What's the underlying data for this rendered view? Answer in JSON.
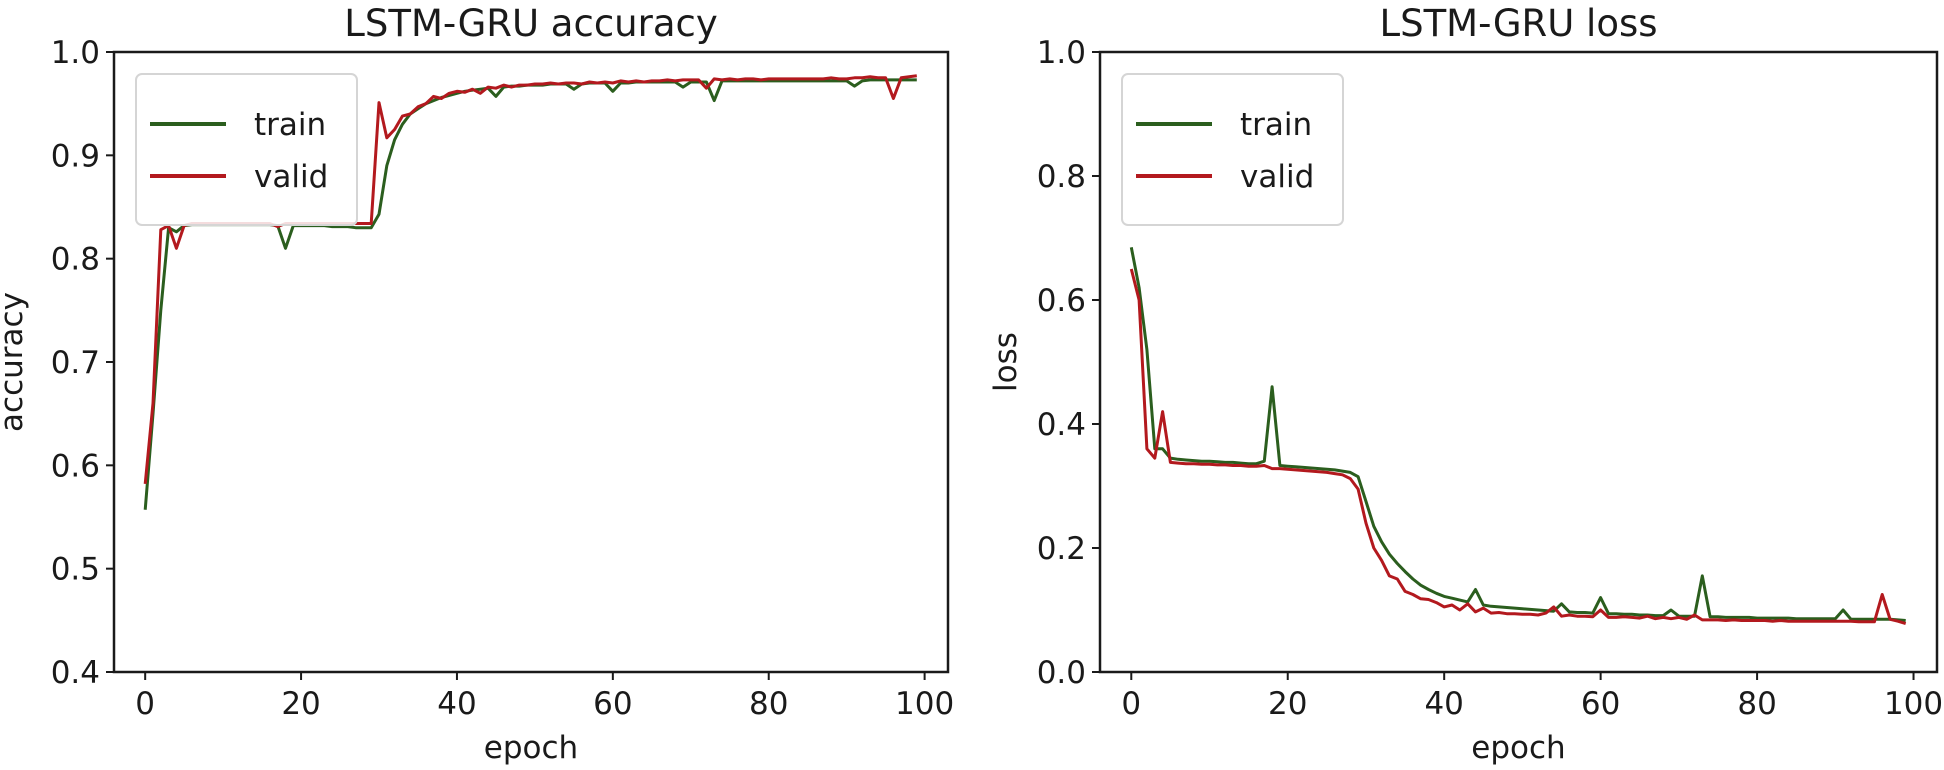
{
  "colors": {
    "train": "#2b5e1e",
    "valid": "#b3191e",
    "axis": "#1a1a1a"
  },
  "chart_data": [
    {
      "type": "line",
      "title": "LSTM-GRU accuracy",
      "xlabel": "epoch",
      "ylabel": "accuracy",
      "xlim": [
        -4,
        103
      ],
      "ylim": [
        0.4,
        1.0
      ],
      "xticks": [
        0,
        20,
        40,
        60,
        80,
        100
      ],
      "yticks": [
        0.4,
        0.5,
        0.6,
        0.7,
        0.8,
        0.9,
        1.0
      ],
      "ytick_labels": [
        "0.4",
        "0.5",
        "0.6",
        "0.7",
        "0.8",
        "0.9",
        "1.0"
      ],
      "grid": false,
      "legend": "upper-left",
      "series": [
        {
          "name": "train",
          "values": [
            0.557,
            0.65,
            0.75,
            0.83,
            0.826,
            0.832,
            0.833,
            0.833,
            0.833,
            0.833,
            0.833,
            0.833,
            0.833,
            0.833,
            0.833,
            0.833,
            0.833,
            0.832,
            0.81,
            0.832,
            0.832,
            0.832,
            0.832,
            0.832,
            0.831,
            0.831,
            0.831,
            0.83,
            0.83,
            0.83,
            0.843,
            0.89,
            0.915,
            0.93,
            0.94,
            0.945,
            0.95,
            0.953,
            0.956,
            0.958,
            0.96,
            0.962,
            0.963,
            0.964,
            0.965,
            0.957,
            0.966,
            0.967,
            0.967,
            0.968,
            0.968,
            0.968,
            0.969,
            0.969,
            0.969,
            0.964,
            0.969,
            0.97,
            0.97,
            0.97,
            0.962,
            0.97,
            0.97,
            0.971,
            0.971,
            0.971,
            0.971,
            0.971,
            0.971,
            0.966,
            0.971,
            0.971,
            0.971,
            0.953,
            0.972,
            0.972,
            0.972,
            0.972,
            0.972,
            0.972,
            0.972,
            0.972,
            0.972,
            0.972,
            0.972,
            0.972,
            0.972,
            0.972,
            0.972,
            0.972,
            0.972,
            0.967,
            0.972,
            0.973,
            0.973,
            0.973,
            0.973,
            0.973,
            0.973,
            0.973
          ]
        },
        {
          "name": "valid",
          "values": [
            0.582,
            0.66,
            0.828,
            0.832,
            0.81,
            0.832,
            0.834,
            0.834,
            0.834,
            0.834,
            0.834,
            0.834,
            0.834,
            0.834,
            0.834,
            0.834,
            0.834,
            0.831,
            0.834,
            0.834,
            0.834,
            0.834,
            0.834,
            0.834,
            0.834,
            0.834,
            0.834,
            0.834,
            0.834,
            0.834,
            0.951,
            0.917,
            0.925,
            0.938,
            0.94,
            0.947,
            0.95,
            0.957,
            0.955,
            0.96,
            0.962,
            0.961,
            0.964,
            0.96,
            0.966,
            0.965,
            0.968,
            0.966,
            0.968,
            0.968,
            0.969,
            0.969,
            0.97,
            0.969,
            0.97,
            0.97,
            0.969,
            0.971,
            0.97,
            0.971,
            0.97,
            0.972,
            0.971,
            0.972,
            0.971,
            0.972,
            0.972,
            0.973,
            0.972,
            0.973,
            0.973,
            0.973,
            0.965,
            0.974,
            0.973,
            0.974,
            0.973,
            0.974,
            0.974,
            0.973,
            0.974,
            0.974,
            0.974,
            0.974,
            0.974,
            0.974,
            0.974,
            0.974,
            0.975,
            0.974,
            0.974,
            0.975,
            0.975,
            0.976,
            0.975,
            0.975,
            0.955,
            0.975,
            0.976,
            0.977
          ]
        }
      ]
    },
    {
      "type": "line",
      "title": "LSTM-GRU loss",
      "xlabel": "epoch",
      "ylabel": "loss",
      "xlim": [
        -4,
        103
      ],
      "ylim": [
        0.0,
        1.0
      ],
      "xticks": [
        0,
        20,
        40,
        60,
        80,
        100
      ],
      "yticks": [
        0.0,
        0.2,
        0.4,
        0.6,
        0.8,
        1.0
      ],
      "ytick_labels": [
        "0.0",
        "0.2",
        "0.4",
        "0.6",
        "0.8",
        "1.0"
      ],
      "grid": false,
      "legend": "upper-left",
      "series": [
        {
          "name": "train",
          "values": [
            0.685,
            0.62,
            0.52,
            0.36,
            0.36,
            0.345,
            0.343,
            0.342,
            0.341,
            0.34,
            0.34,
            0.339,
            0.338,
            0.338,
            0.337,
            0.336,
            0.336,
            0.34,
            0.46,
            0.333,
            0.332,
            0.331,
            0.33,
            0.329,
            0.328,
            0.327,
            0.326,
            0.324,
            0.322,
            0.315,
            0.275,
            0.235,
            0.21,
            0.19,
            0.175,
            0.162,
            0.15,
            0.14,
            0.133,
            0.127,
            0.122,
            0.119,
            0.116,
            0.113,
            0.133,
            0.108,
            0.106,
            0.105,
            0.104,
            0.103,
            0.102,
            0.101,
            0.1,
            0.099,
            0.098,
            0.11,
            0.097,
            0.096,
            0.096,
            0.095,
            0.12,
            0.094,
            0.094,
            0.093,
            0.093,
            0.092,
            0.092,
            0.091,
            0.091,
            0.1,
            0.09,
            0.09,
            0.09,
            0.155,
            0.089,
            0.089,
            0.088,
            0.088,
            0.088,
            0.088,
            0.087,
            0.087,
            0.087,
            0.087,
            0.087,
            0.086,
            0.086,
            0.086,
            0.086,
            0.086,
            0.086,
            0.1,
            0.085,
            0.085,
            0.085,
            0.085,
            0.085,
            0.085,
            0.084,
            0.083
          ]
        },
        {
          "name": "valid",
          "values": [
            0.65,
            0.6,
            0.36,
            0.345,
            0.42,
            0.338,
            0.337,
            0.336,
            0.336,
            0.335,
            0.335,
            0.334,
            0.334,
            0.333,
            0.333,
            0.332,
            0.332,
            0.333,
            0.328,
            0.328,
            0.327,
            0.326,
            0.325,
            0.324,
            0.323,
            0.322,
            0.32,
            0.318,
            0.312,
            0.295,
            0.24,
            0.2,
            0.18,
            0.155,
            0.15,
            0.13,
            0.125,
            0.118,
            0.117,
            0.112,
            0.105,
            0.108,
            0.1,
            0.11,
            0.097,
            0.103,
            0.095,
            0.096,
            0.094,
            0.094,
            0.093,
            0.093,
            0.092,
            0.095,
            0.105,
            0.09,
            0.092,
            0.09,
            0.09,
            0.089,
            0.1,
            0.088,
            0.088,
            0.089,
            0.088,
            0.087,
            0.09,
            0.086,
            0.088,
            0.086,
            0.088,
            0.085,
            0.092,
            0.084,
            0.084,
            0.084,
            0.083,
            0.084,
            0.083,
            0.083,
            0.083,
            0.083,
            0.082,
            0.083,
            0.082,
            0.082,
            0.082,
            0.082,
            0.082,
            0.082,
            0.082,
            0.082,
            0.082,
            0.081,
            0.081,
            0.081,
            0.125,
            0.085,
            0.082,
            0.078
          ]
        }
      ]
    }
  ]
}
